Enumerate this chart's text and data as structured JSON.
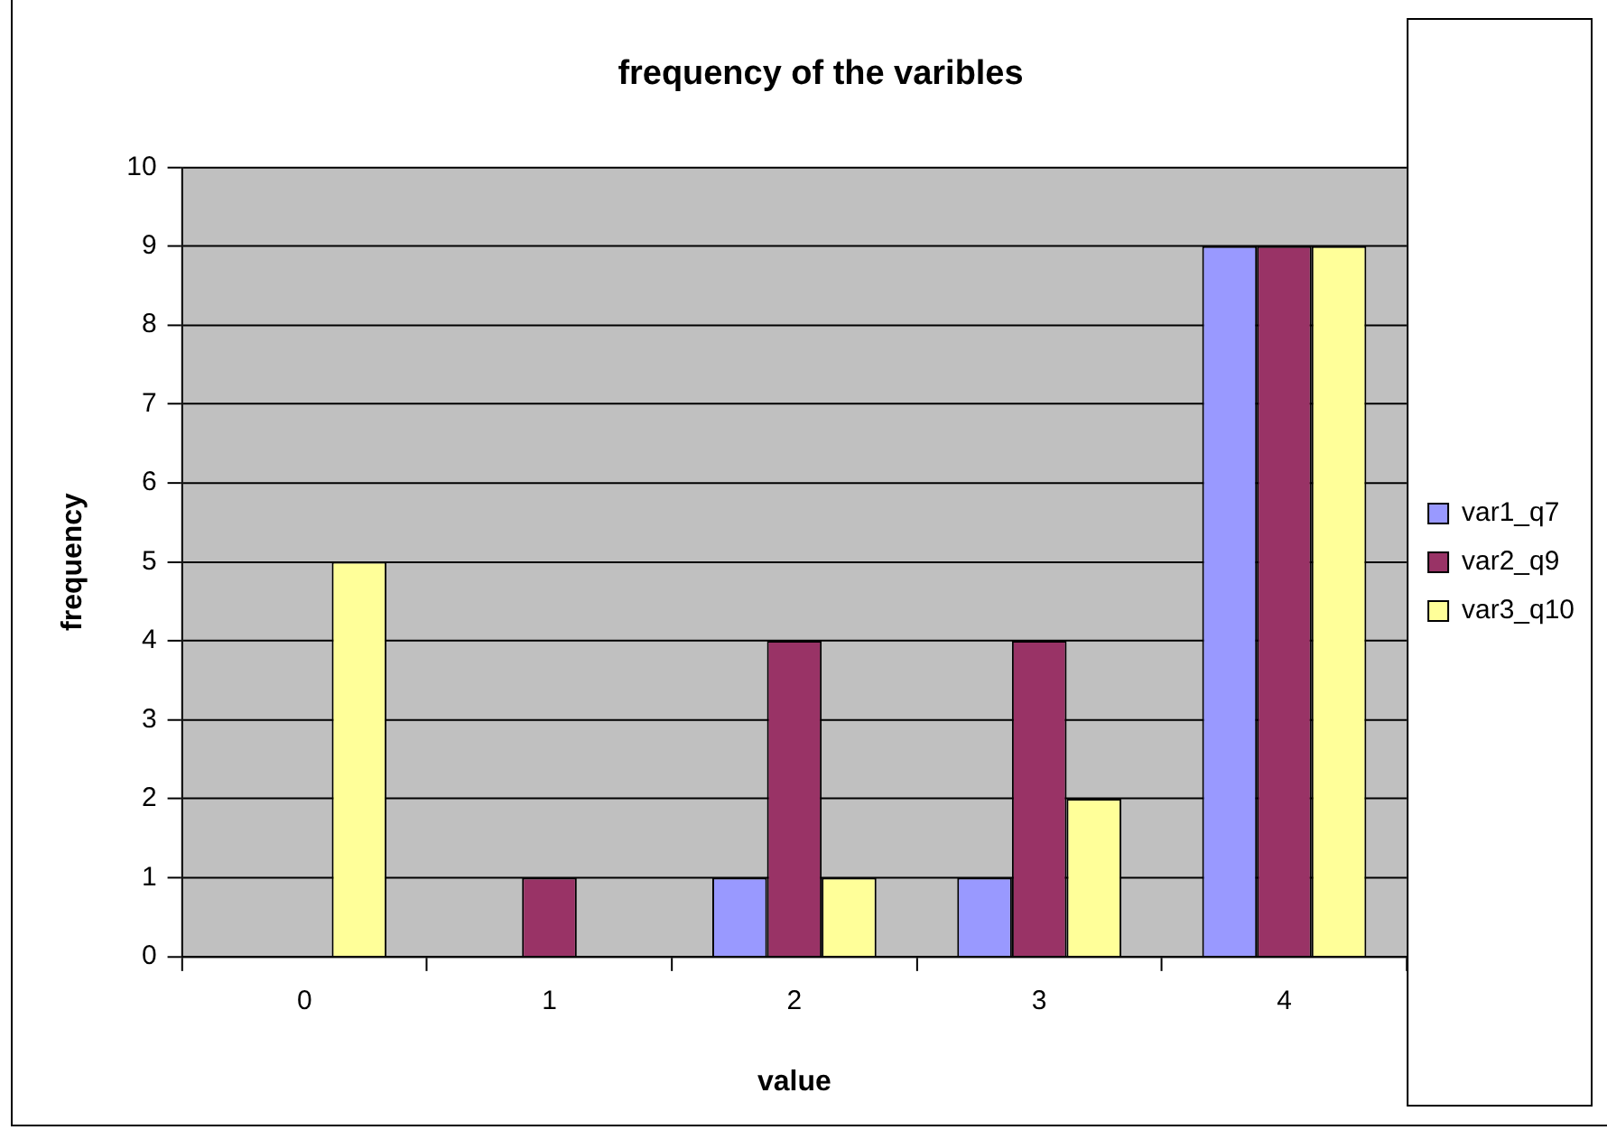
{
  "chart_data": {
    "type": "bar",
    "title": "frequency of the varibles",
    "xlabel": "value",
    "ylabel": "frequency",
    "categories": [
      "0",
      "1",
      "2",
      "3",
      "4"
    ],
    "series": [
      {
        "name": "var1_q7",
        "color": "#9999ff",
        "values": [
          0,
          0,
          1,
          1,
          9
        ]
      },
      {
        "name": "var2_q9",
        "color": "#993366",
        "values": [
          0,
          1,
          4,
          4,
          9
        ]
      },
      {
        "name": "var3_q10",
        "color": "#ffff99",
        "values": [
          5,
          0,
          1,
          2,
          9
        ]
      }
    ],
    "ylim": [
      0,
      10
    ],
    "yticks": [
      0,
      1,
      2,
      3,
      4,
      5,
      6,
      7,
      8,
      9,
      10
    ],
    "grid": "y",
    "legend": "right"
  }
}
